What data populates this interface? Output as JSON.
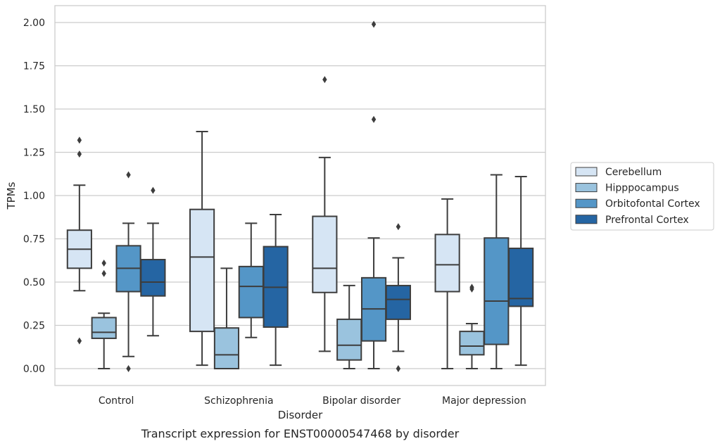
{
  "chart_data": {
    "type": "box",
    "xlabel": "Disorder",
    "ylabel": "TPMs",
    "caption": "Transcript expression for ENST00000547468 by disorder",
    "ylim": [
      -0.1,
      2.09
    ],
    "yticks": [
      "0.00",
      "0.25",
      "0.50",
      "0.75",
      "1.00",
      "1.25",
      "1.50",
      "1.75",
      "2.00"
    ],
    "grid": true,
    "legend_position": "right",
    "categories": [
      "Control",
      "Schizophrenia",
      "Bipolar disorder",
      "Major depression"
    ],
    "series": [
      {
        "name": "Cerebellum",
        "color": "#d6e5f4",
        "boxes": [
          {
            "whisker_low": 0.45,
            "q1": 0.58,
            "median": 0.69,
            "q3": 0.8,
            "whisker_high": 1.06,
            "outliers": [
              1.32,
              1.24,
              0.16
            ]
          },
          {
            "whisker_low": 0.02,
            "q1": 0.215,
            "median": 0.645,
            "q3": 0.92,
            "whisker_high": 1.37,
            "outliers": []
          },
          {
            "whisker_low": 0.1,
            "q1": 0.44,
            "median": 0.58,
            "q3": 0.88,
            "whisker_high": 1.22,
            "outliers": [
              1.67
            ]
          },
          {
            "whisker_low": 0.0,
            "q1": 0.445,
            "median": 0.6,
            "q3": 0.775,
            "whisker_high": 0.98,
            "outliers": []
          }
        ]
      },
      {
        "name": "Hipppocampus",
        "color": "#9ac3de",
        "boxes": [
          {
            "whisker_low": 0.0,
            "q1": 0.175,
            "median": 0.21,
            "q3": 0.295,
            "whisker_high": 0.32,
            "outliers": [
              0.61,
              0.55
            ]
          },
          {
            "whisker_low": 0.0,
            "q1": 0.0,
            "median": 0.08,
            "q3": 0.235,
            "whisker_high": 0.58,
            "outliers": []
          },
          {
            "whisker_low": 0.0,
            "q1": 0.05,
            "median": 0.135,
            "q3": 0.285,
            "whisker_high": 0.48,
            "outliers": []
          },
          {
            "whisker_low": 0.0,
            "q1": 0.08,
            "median": 0.13,
            "q3": 0.215,
            "whisker_high": 0.26,
            "outliers": [
              0.47,
              0.46
            ]
          }
        ]
      },
      {
        "name": "Orbitofontal Cortex",
        "color": "#5496c7",
        "boxes": [
          {
            "whisker_low": 0.07,
            "q1": 0.445,
            "median": 0.58,
            "q3": 0.71,
            "whisker_high": 0.84,
            "outliers": [
              1.12,
              0.0
            ]
          },
          {
            "whisker_low": 0.18,
            "q1": 0.295,
            "median": 0.475,
            "q3": 0.59,
            "whisker_high": 0.84,
            "outliers": []
          },
          {
            "whisker_low": 0.0,
            "q1": 0.16,
            "median": 0.345,
            "q3": 0.525,
            "whisker_high": 0.755,
            "outliers": [
              1.99,
              1.44
            ]
          },
          {
            "whisker_low": 0.0,
            "q1": 0.14,
            "median": 0.39,
            "q3": 0.755,
            "whisker_high": 1.12,
            "outliers": []
          }
        ]
      },
      {
        "name": "Prefrontal Cortex",
        "color": "#2565a3",
        "boxes": [
          {
            "whisker_low": 0.19,
            "q1": 0.42,
            "median": 0.5,
            "q3": 0.63,
            "whisker_high": 0.84,
            "outliers": [
              1.03
            ]
          },
          {
            "whisker_low": 0.02,
            "q1": 0.24,
            "median": 0.47,
            "q3": 0.705,
            "whisker_high": 0.89,
            "outliers": []
          },
          {
            "whisker_low": 0.1,
            "q1": 0.285,
            "median": 0.4,
            "q3": 0.48,
            "whisker_high": 0.64,
            "outliers": [
              0.82,
              0.0
            ]
          },
          {
            "whisker_low": 0.02,
            "q1": 0.36,
            "median": 0.405,
            "q3": 0.695,
            "whisker_high": 1.11,
            "outliers": []
          }
        ]
      }
    ]
  }
}
